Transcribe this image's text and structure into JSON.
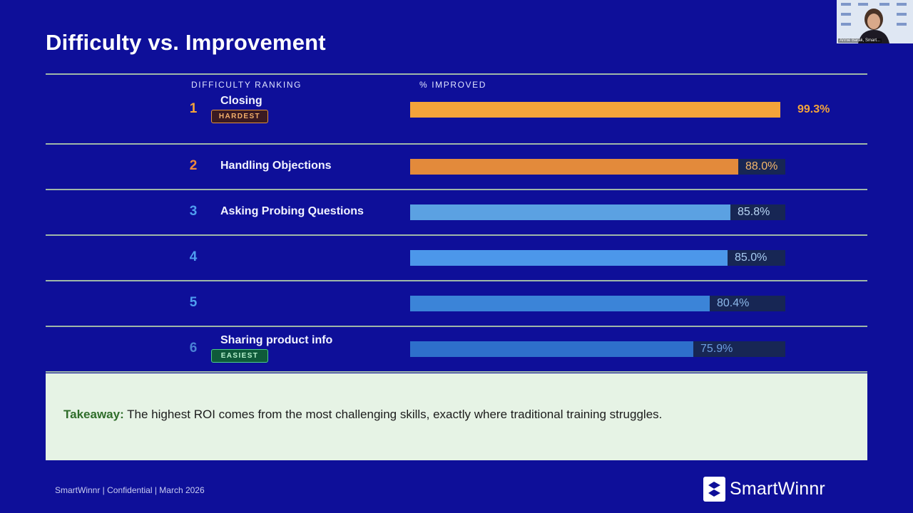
{
  "slide": {
    "title": "Difficulty vs. Improvement"
  },
  "chart_data": {
    "type": "bar",
    "orientation": "horizontal",
    "title": "Difficulty vs. Improvement",
    "column_headers": [
      "DIFFICULTY RANKING",
      "% IMPROVED"
    ],
    "xlim": [
      0,
      100
    ],
    "rows": [
      {
        "rank": "1",
        "skill": "Closing",
        "badge": "HARDEST",
        "value": 99.3,
        "label": "99.3%",
        "color": "#f4a43a",
        "rank_color": "#f4a43a",
        "pct_color": "#f4a43a"
      },
      {
        "rank": "2",
        "skill": "Handling Objections",
        "badge": "",
        "value": 88.0,
        "label": "88.0%",
        "color": "#e38a3b",
        "rank_color": "#f08a3a",
        "pct_color": "#f4b86a"
      },
      {
        "rank": "3",
        "skill": "Asking Probing Questions",
        "badge": "",
        "value": 85.8,
        "label": "85.8%",
        "color": "#5ba1e2",
        "rank_color": "#4f9df0",
        "pct_color": "#b9d6f5"
      },
      {
        "rank": "4",
        "skill": "",
        "badge": "",
        "value": 85.0,
        "label": "85.0%",
        "color": "#4c97ea",
        "rank_color": "#4f9df0",
        "pct_color": "#a9cdf3"
      },
      {
        "rank": "5",
        "skill": "",
        "badge": "",
        "value": 80.4,
        "label": "80.4%",
        "color": "#3b84d8",
        "rank_color": "#4f9df0",
        "pct_color": "#8db9ea"
      },
      {
        "rank": "6",
        "skill": "Sharing product info",
        "badge": "EASIEST",
        "value": 75.9,
        "label": "75.9%",
        "color": "#2e6fcb",
        "rank_color": "#4a82d6",
        "pct_color": "#6d9ee0"
      }
    ]
  },
  "takeaway": {
    "label": "Takeaway:",
    "text": " The highest ROI comes from the most challenging skills, exactly where traditional training struggles."
  },
  "footer": {
    "text": "SmartWinnr  |  Confidential  | March 2026"
  },
  "logo": {
    "name": "SmartWinnr"
  },
  "webcam": {
    "caption": "Annie Barak, Smart..."
  }
}
